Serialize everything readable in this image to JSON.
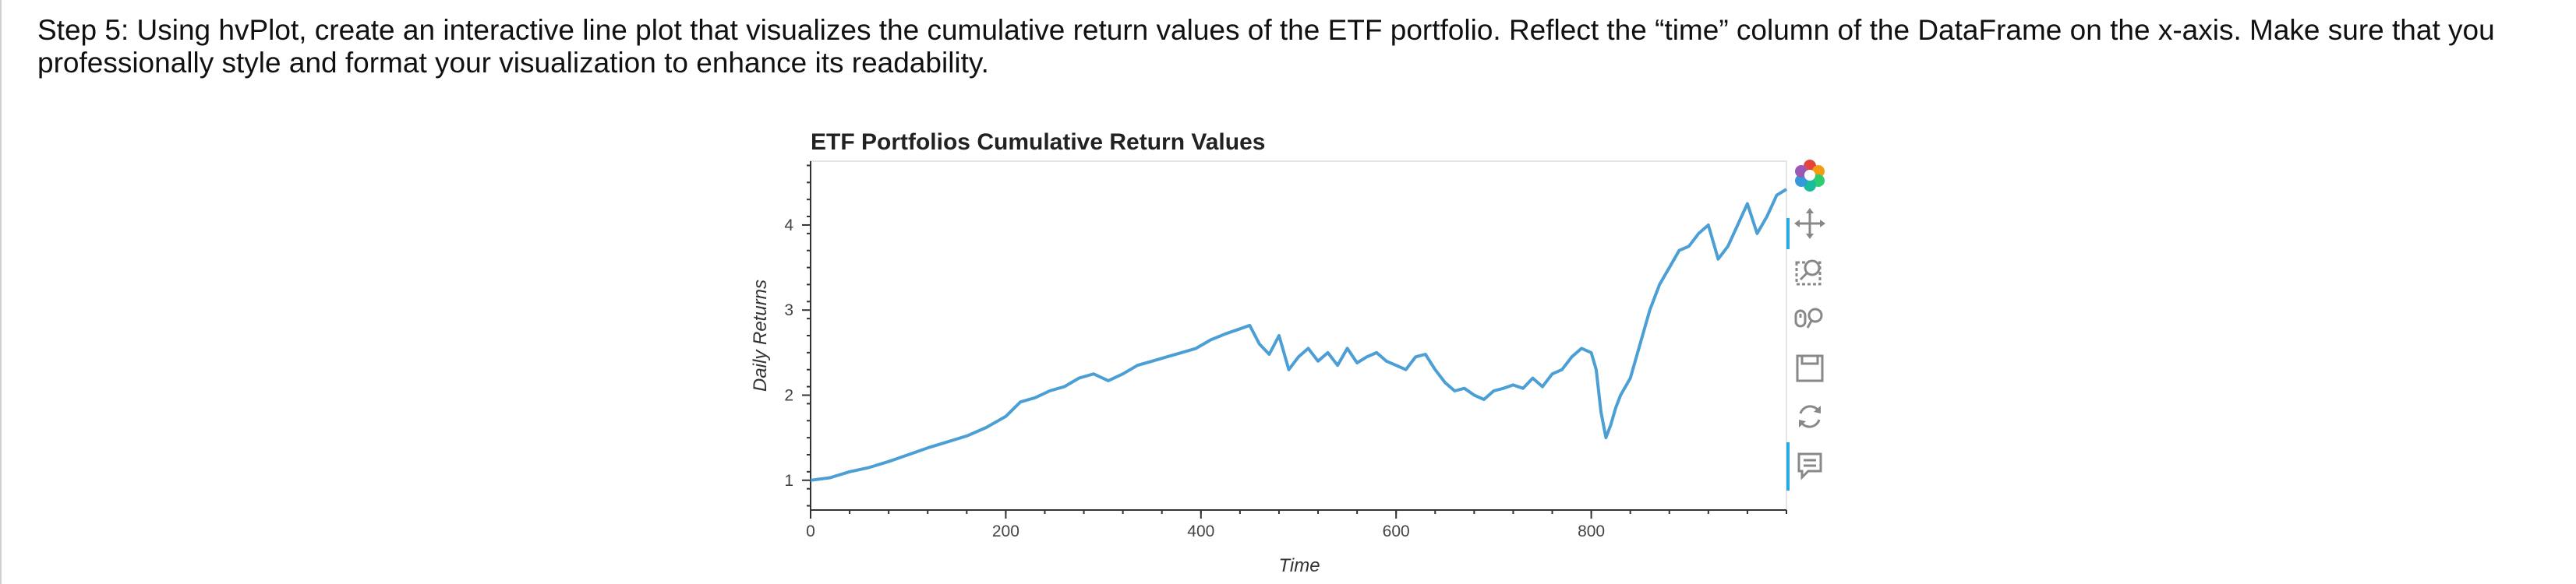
{
  "instructions": "Step 5: Using hvPlot, create an interactive line plot that visualizes the cumulative return values of the ETF portfolio. Reflect the “time” column of the DataFrame on the x-axis. Make sure that you professionally style and format your visualization to enhance its readability.",
  "toolbar": {
    "tools": [
      "bokeh-logo-icon",
      "pan-icon",
      "box-zoom-icon",
      "wheel-zoom-icon",
      "save-icon",
      "reset-icon",
      "hover-icon"
    ]
  },
  "chart_data": {
    "type": "line",
    "title": "ETF Portfolios Cumulative Return Values",
    "xlabel": "Time",
    "ylabel": "Daily Returns",
    "xlim": [
      0,
      1000
    ],
    "ylim": [
      0.65,
      4.75
    ],
    "xticks": [
      0,
      200,
      400,
      600,
      800
    ],
    "yticks": [
      1,
      2,
      3,
      4
    ],
    "grid": false,
    "color": "#4c9fd4",
    "series": [
      {
        "x": [
          0,
          20,
          40,
          60,
          80,
          100,
          120,
          140,
          160,
          180,
          200,
          215,
          230,
          245,
          260,
          275,
          290,
          305,
          320,
          335,
          350,
          365,
          380,
          395,
          410,
          425,
          440,
          450,
          460,
          470,
          480,
          490,
          500,
          510,
          520,
          530,
          540,
          550,
          560,
          570,
          580,
          590,
          600,
          610,
          620,
          630,
          640,
          650,
          660,
          670,
          680,
          690,
          700,
          710,
          720,
          730,
          740,
          750,
          760,
          770,
          780,
          790,
          800,
          805,
          810,
          815,
          820,
          825,
          830,
          840,
          850,
          860,
          870,
          880,
          890,
          900,
          910,
          920,
          930,
          940,
          950,
          960,
          970,
          980,
          990,
          1000
        ],
        "y": [
          1.0,
          1.03,
          1.1,
          1.15,
          1.22,
          1.3,
          1.38,
          1.45,
          1.52,
          1.62,
          1.75,
          1.92,
          1.97,
          2.05,
          2.1,
          2.2,
          2.25,
          2.17,
          2.25,
          2.35,
          2.4,
          2.45,
          2.5,
          2.55,
          2.65,
          2.72,
          2.78,
          2.82,
          2.6,
          2.48,
          2.7,
          2.3,
          2.45,
          2.55,
          2.4,
          2.5,
          2.35,
          2.55,
          2.38,
          2.45,
          2.5,
          2.4,
          2.35,
          2.3,
          2.45,
          2.48,
          2.3,
          2.15,
          2.05,
          2.08,
          2.0,
          1.95,
          2.05,
          2.08,
          2.12,
          2.08,
          2.2,
          2.1,
          2.25,
          2.3,
          2.45,
          2.55,
          2.5,
          2.3,
          1.8,
          1.5,
          1.65,
          1.85,
          2.0,
          2.2,
          2.6,
          3.0,
          3.3,
          3.5,
          3.7,
          3.75,
          3.9,
          4.0,
          3.6,
          3.75,
          4.0,
          4.25,
          3.9,
          4.1,
          4.35,
          4.42
        ]
      }
    ]
  }
}
